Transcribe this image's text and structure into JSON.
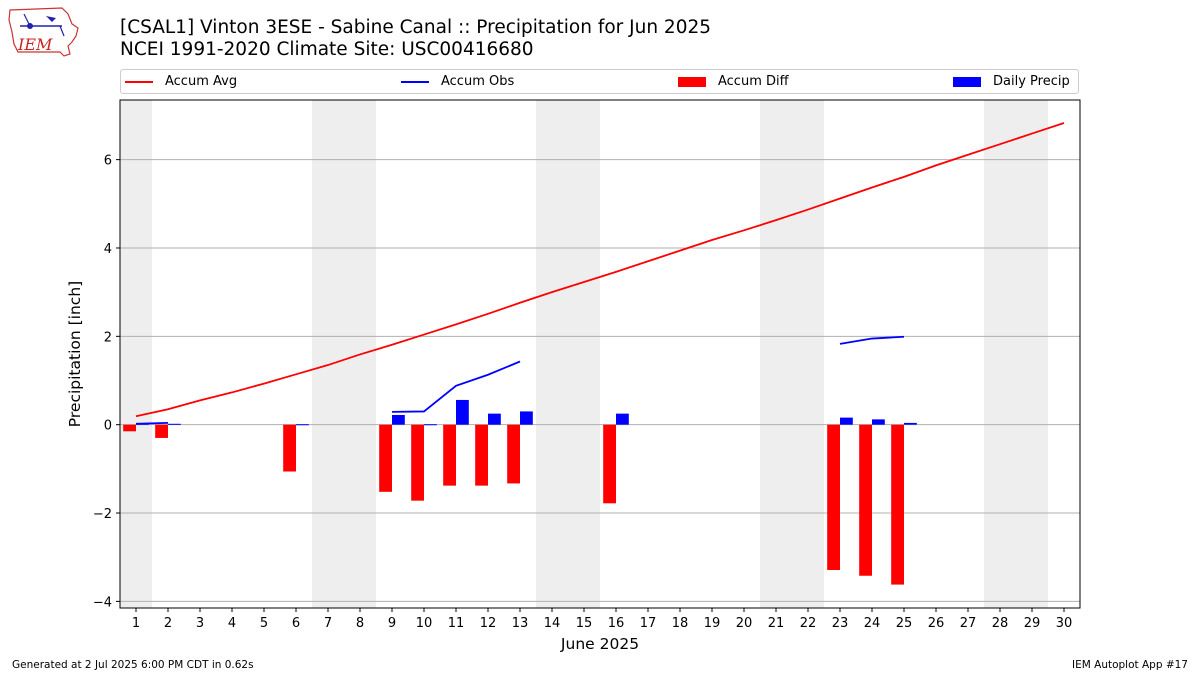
{
  "header": {
    "title_line1": "[CSAL1] Vinton 3ESE - Sabine Canal :: Precipitation for Jun 2025",
    "title_line2": "NCEI 1991-2020 Climate Site: USC00416680",
    "logo_text": "IEM"
  },
  "footer": {
    "left": "Generated at 2 Jul 2025 6:00 PM CDT in 0.62s",
    "right": "IEM Autoplot App #17"
  },
  "legend": [
    {
      "label": "Accum Avg",
      "kind": "line",
      "color": "#ff0000"
    },
    {
      "label": "Accum Obs",
      "kind": "line",
      "color": "#0000ff"
    },
    {
      "label": "Accum Diff",
      "kind": "bar",
      "color": "#ff0000"
    },
    {
      "label": "Daily Precip",
      "kind": "bar",
      "color": "#0000ff"
    }
  ],
  "chart_data": {
    "type": "bar",
    "xlabel": "June 2025",
    "ylabel": "Precipitation [inch]",
    "xlim": [
      0.5,
      30.5
    ],
    "ylim": [
      -4.15,
      7.35
    ],
    "yticks": [
      -4,
      -2,
      0,
      2,
      4,
      6
    ],
    "xticks": [
      "1",
      "2",
      "3",
      "4",
      "5",
      "6",
      "7",
      "8",
      "9",
      "10",
      "11",
      "12",
      "13",
      "14",
      "15",
      "16",
      "17",
      "18",
      "19",
      "20",
      "21",
      "22",
      "23",
      "24",
      "25",
      "26",
      "27",
      "28",
      "29",
      "30"
    ],
    "grid": "horizontal",
    "legend_position": "top",
    "weekend_shading": [
      [
        0.5,
        1.5
      ],
      [
        6.5,
        8.5
      ],
      [
        13.5,
        15.5
      ],
      [
        20.5,
        22.5
      ],
      [
        27.5,
        29.5
      ]
    ],
    "colors": {
      "avg": "#ff0000",
      "obs": "#0000ff",
      "diff": "#ff0000",
      "daily": "#0000ff",
      "shade": "#eeeeee",
      "grid": "#b0b0b0"
    },
    "series": [
      {
        "name": "Accum Avg",
        "kind": "line",
        "x": [
          1,
          2,
          3,
          4,
          5,
          6,
          7,
          8,
          9,
          10,
          11,
          12,
          13,
          14,
          15,
          16,
          17,
          18,
          19,
          20,
          21,
          22,
          23,
          24,
          25,
          26,
          27,
          28,
          29,
          30
        ],
        "values": [
          0.19,
          0.35,
          0.55,
          0.73,
          0.93,
          1.14,
          1.35,
          1.59,
          1.81,
          2.04,
          2.27,
          2.51,
          2.76,
          3.0,
          3.23,
          3.46,
          3.7,
          3.94,
          4.18,
          4.4,
          4.63,
          4.87,
          5.12,
          5.37,
          5.61,
          5.87,
          6.11,
          6.35,
          6.59,
          6.83
        ]
      },
      {
        "name": "Accum Obs",
        "kind": "line",
        "segments": [
          {
            "x": [
              1,
              2
            ],
            "values": [
              0.02,
              0.04
            ]
          },
          {
            "x": [
              9,
              10,
              11,
              12,
              13
            ],
            "values": [
              0.29,
              0.3,
              0.88,
              1.13,
              1.43
            ]
          },
          {
            "x": [
              23,
              24,
              25
            ],
            "values": [
              1.83,
              1.95,
              1.99
            ]
          }
        ]
      },
      {
        "name": "Accum Diff",
        "kind": "bar",
        "x": [
          1,
          2,
          6,
          9,
          10,
          11,
          12,
          13,
          16,
          23,
          24,
          25
        ],
        "values": [
          -0.15,
          -0.3,
          -1.06,
          -1.52,
          -1.72,
          -1.38,
          -1.38,
          -1.33,
          -1.78,
          -3.29,
          -3.42,
          -3.62
        ]
      },
      {
        "name": "Daily Precip",
        "kind": "bar",
        "x": [
          1,
          2,
          6,
          9,
          10,
          11,
          12,
          13,
          16,
          23,
          24,
          25
        ],
        "values": [
          0.02,
          0.02,
          0.01,
          0.22,
          0.01,
          0.56,
          0.25,
          0.3,
          0.25,
          0.16,
          0.12,
          0.04
        ]
      }
    ]
  }
}
